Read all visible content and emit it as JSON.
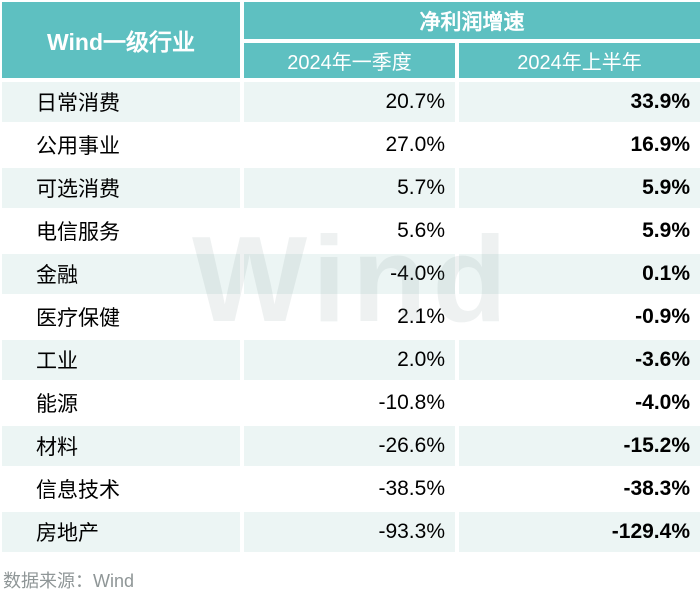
{
  "chart_data": {
    "type": "table",
    "title": "净利润增速",
    "corner_header": "Wind一级行业",
    "sub_headers": [
      "2024年一季度",
      "2024年上半年"
    ],
    "columns": [
      "Wind一级行业",
      "2024年一季度",
      "2024年上半年"
    ],
    "rows": [
      {
        "industry": "日常消费",
        "q1": "20.7%",
        "h1": "33.9%"
      },
      {
        "industry": "公用事业",
        "q1": "27.0%",
        "h1": "16.9%"
      },
      {
        "industry": "可选消费",
        "q1": "5.7%",
        "h1": "5.9%"
      },
      {
        "industry": "电信服务",
        "q1": "5.6%",
        "h1": "5.9%"
      },
      {
        "industry": "金融",
        "q1": "-4.0%",
        "h1": "0.1%"
      },
      {
        "industry": "医疗保健",
        "q1": "2.1%",
        "h1": "-0.9%"
      },
      {
        "industry": "工业",
        "q1": "2.0%",
        "h1": "-3.6%"
      },
      {
        "industry": "能源",
        "q1": "-10.8%",
        "h1": "-4.0%"
      },
      {
        "industry": "材料",
        "q1": "-26.6%",
        "h1": "-15.2%"
      },
      {
        "industry": "信息技术",
        "q1": "-38.5%",
        "h1": "-38.3%"
      },
      {
        "industry": "房地产",
        "q1": "-93.3%",
        "h1": "-129.4%"
      }
    ]
  },
  "watermark_text": "Wind",
  "footer_source": "数据来源：Wind",
  "colors": {
    "header_bg": "#5ec0c1",
    "row_tint": "#ecf5f4",
    "text": "#000000",
    "footer_gray": "#8f9697"
  }
}
